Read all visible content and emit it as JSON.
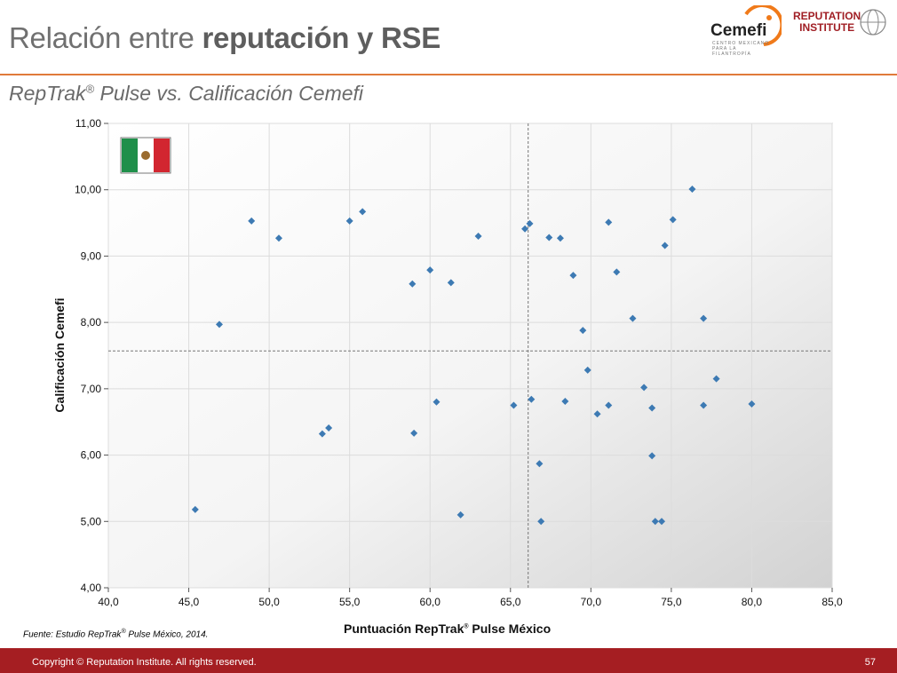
{
  "header": {
    "title_regular": "Relación entre ",
    "title_bold": "reputación y RSE",
    "subtitle": "RepTrak",
    "subtitle_sup": "®",
    "subtitle_rest": " Pulse vs. Calificación Cemefi",
    "logos": {
      "cemefi": "Cemefi",
      "cemefi_tagline": "CENTRO MEXICANO PARA LA FILANTROPÍA",
      "ri_line1": "REPUTATION",
      "ri_line2": "INSTITUTE"
    },
    "accent_color": "#e07a3a"
  },
  "chart_data": {
    "type": "scatter",
    "xlabel": "Puntuación RepTrak® Pulse México",
    "ylabel": "Calificación Cemefi",
    "xlim": [
      40,
      85
    ],
    "ylim": [
      4,
      11
    ],
    "xticks": [
      "40,0",
      "45,0",
      "50,0",
      "55,0",
      "60,0",
      "65,0",
      "70,0",
      "75,0",
      "80,0",
      "85,0"
    ],
    "yticks": [
      "4,00",
      "5,00",
      "6,00",
      "7,00",
      "8,00",
      "9,00",
      "10,00",
      "11,00"
    ],
    "grid": true,
    "marker": "diamond",
    "marker_color": "#3d7ab3",
    "reference_lines": {
      "x": 66.1,
      "y": 7.57
    },
    "flag": "mexico",
    "points": [
      [
        45.4,
        5.18
      ],
      [
        46.9,
        7.97
      ],
      [
        48.9,
        9.53
      ],
      [
        50.6,
        9.27
      ],
      [
        53.3,
        6.32
      ],
      [
        53.7,
        6.41
      ],
      [
        55.0,
        9.53
      ],
      [
        55.8,
        9.67
      ],
      [
        58.9,
        8.58
      ],
      [
        59.0,
        6.33
      ],
      [
        60.0,
        8.79
      ],
      [
        60.4,
        6.8
      ],
      [
        61.3,
        8.6
      ],
      [
        61.9,
        5.1
      ],
      [
        63.0,
        9.3
      ],
      [
        65.2,
        6.75
      ],
      [
        65.9,
        9.41
      ],
      [
        66.2,
        9.49
      ],
      [
        66.3,
        6.84
      ],
      [
        66.8,
        5.87
      ],
      [
        66.9,
        5.0
      ],
      [
        67.4,
        9.28
      ],
      [
        68.1,
        9.27
      ],
      [
        68.4,
        6.81
      ],
      [
        68.9,
        8.71
      ],
      [
        69.5,
        7.88
      ],
      [
        69.8,
        7.28
      ],
      [
        70.4,
        6.62
      ],
      [
        71.1,
        9.51
      ],
      [
        71.1,
        6.75
      ],
      [
        71.6,
        8.76
      ],
      [
        72.6,
        8.06
      ],
      [
        73.3,
        7.02
      ],
      [
        73.8,
        6.71
      ],
      [
        73.8,
        5.99
      ],
      [
        74.0,
        5.0
      ],
      [
        74.4,
        5.0
      ],
      [
        74.6,
        9.16
      ],
      [
        75.1,
        9.55
      ],
      [
        76.3,
        10.01
      ],
      [
        77.0,
        8.06
      ],
      [
        77.0,
        6.75
      ],
      [
        77.8,
        7.15
      ],
      [
        80.0,
        6.77
      ]
    ]
  },
  "source": {
    "text": "Fuente: Estudio RepTrak",
    "sup": "®",
    "rest": " Pulse México, 2014."
  },
  "xlabel_parts": {
    "a": "Puntuación RepTrak",
    "sup": "®",
    "b": " Pulse México"
  },
  "footer": {
    "copyright": "Copyright © Reputation Institute. All rights reserved.",
    "page": "57",
    "color": "#a51e22"
  }
}
